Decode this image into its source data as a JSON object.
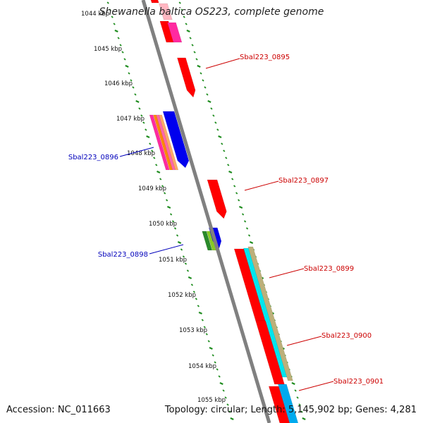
{
  "title": "Shewanella baltica OS223, complete genome",
  "footer": {
    "accession": "Accession: NC_011663",
    "summary": "Topology: circular; Length: 5,145,902 bp; Genes: 4,281"
  },
  "colors": {
    "backbone": "#808080",
    "tick": "#1e8c1e",
    "label_red": "#cc0000",
    "label_blue": "#0000bb"
  },
  "position_labels": [
    "1044 kbp",
    "1045 kbp",
    "1046 kbp",
    "1047 kbp",
    "1048 kbp",
    "1049 kbp",
    "1050 kbp",
    "1051 kbp",
    "1052 kbp",
    "1053 kbp",
    "1054 kbp",
    "1055 kbp"
  ],
  "gene_labels": [
    {
      "text": "Sbal223_0895",
      "color": "#cc0000"
    },
    {
      "text": "Sbal223_0896",
      "color": "#0000bb"
    },
    {
      "text": "Sbal223_0897",
      "color": "#cc0000"
    },
    {
      "text": "Sbal223_0898",
      "color": "#0000bb"
    },
    {
      "text": "Sbal223_0899",
      "color": "#cc0000"
    },
    {
      "text": "Sbal223_0900",
      "color": "#cc0000"
    },
    {
      "text": "Sbal223_0901",
      "color": "#cc0000"
    }
  ]
}
